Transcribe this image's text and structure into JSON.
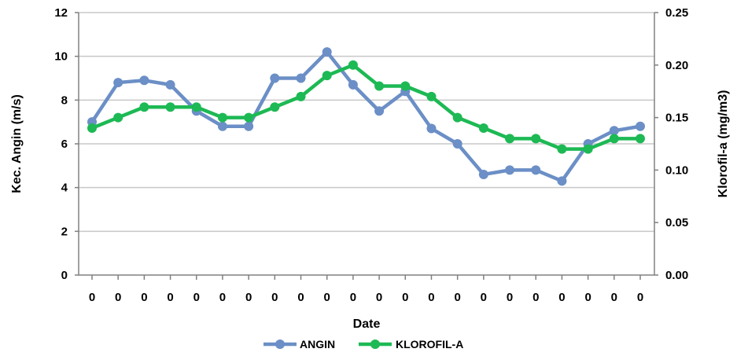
{
  "chart_data": {
    "type": "line",
    "title": "",
    "xlabel": "Date",
    "ylabel_left": "Kec. Angin  (m/s)",
    "ylabel_right": "Klorofil-a (mg/m3)",
    "categories": [
      "0",
      "0",
      "0",
      "0",
      "0",
      "0",
      "0",
      "0",
      "0",
      "0",
      "0",
      "0",
      "0",
      "0",
      "0",
      "0",
      "0",
      "0",
      "0",
      "0",
      "0",
      "0"
    ],
    "y_left": {
      "min": 0,
      "max": 12,
      "step": 2,
      "ticks": [
        "0",
        "2",
        "4",
        "6",
        "8",
        "10",
        "12"
      ]
    },
    "y_right": {
      "min": 0,
      "max": 0.25,
      "step": 0.05,
      "ticks": [
        "0.00",
        "0.05",
        "0.10",
        "0.15",
        "0.20",
        "0.25"
      ]
    },
    "grid": true,
    "legend_position": "bottom",
    "series": [
      {
        "name": "ANGIN",
        "axis": "left",
        "color": "#6b8fc6",
        "values": [
          7.0,
          8.8,
          8.9,
          8.7,
          7.5,
          6.8,
          6.8,
          9.0,
          9.0,
          10.2,
          8.7,
          7.5,
          8.4,
          6.7,
          6.0,
          4.6,
          4.8,
          4.8,
          4.3,
          6.0,
          6.6,
          6.8
        ]
      },
      {
        "name": "KLOROFIL-A",
        "axis": "right",
        "color": "#1db954",
        "values": [
          0.14,
          0.15,
          0.16,
          0.16,
          0.16,
          0.15,
          0.15,
          0.16,
          0.17,
          0.19,
          0.2,
          0.18,
          0.18,
          0.17,
          0.15,
          0.14,
          0.13,
          0.13,
          0.12,
          0.12,
          0.13,
          0.13
        ]
      }
    ]
  }
}
